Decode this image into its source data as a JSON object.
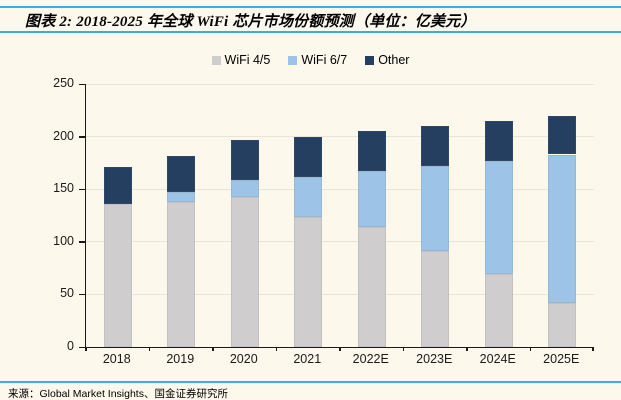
{
  "header": {
    "title": "图表 2: 2018-2025 年全球 WiFi 芯片市场份额预测（单位：亿美元）"
  },
  "chart_data": {
    "type": "bar",
    "stacked": true,
    "title": "2018-2025 年全球 WiFi 芯片市场份额预测（单位：亿美元）",
    "categories": [
      "2018",
      "2019",
      "2020",
      "2021",
      "2022E",
      "2023E",
      "2024E",
      "2025E"
    ],
    "series": [
      {
        "name": "WiFi 4/5",
        "color": "#CFCDCD",
        "values": [
          136,
          138,
          143,
          124,
          114,
          91,
          69,
          42
        ]
      },
      {
        "name": "WiFi 6/7",
        "color": "#9DC3E6",
        "values": [
          0,
          9,
          16,
          38,
          53,
          81,
          108,
          141
        ]
      },
      {
        "name": "Other",
        "color": "#243F60",
        "values": [
          35,
          35,
          38,
          38,
          38,
          38,
          38,
          37
        ]
      }
    ],
    "totals": [
      171,
      182,
      197,
      200,
      205,
      210,
      215,
      220
    ],
    "xlabel": "",
    "ylabel": "",
    "ylim": [
      0,
      250
    ],
    "yticks": [
      0,
      50,
      100,
      150,
      200,
      250
    ],
    "grid": true,
    "legend_position": "top"
  },
  "colors": {
    "background": "#FDF8EC",
    "rule_blue": "#3BADE3",
    "gridline": "#E9E4D8",
    "axis": "#1a1a1a"
  },
  "footer": {
    "source": "来源：Global Market Insights、国金证券研究所"
  }
}
